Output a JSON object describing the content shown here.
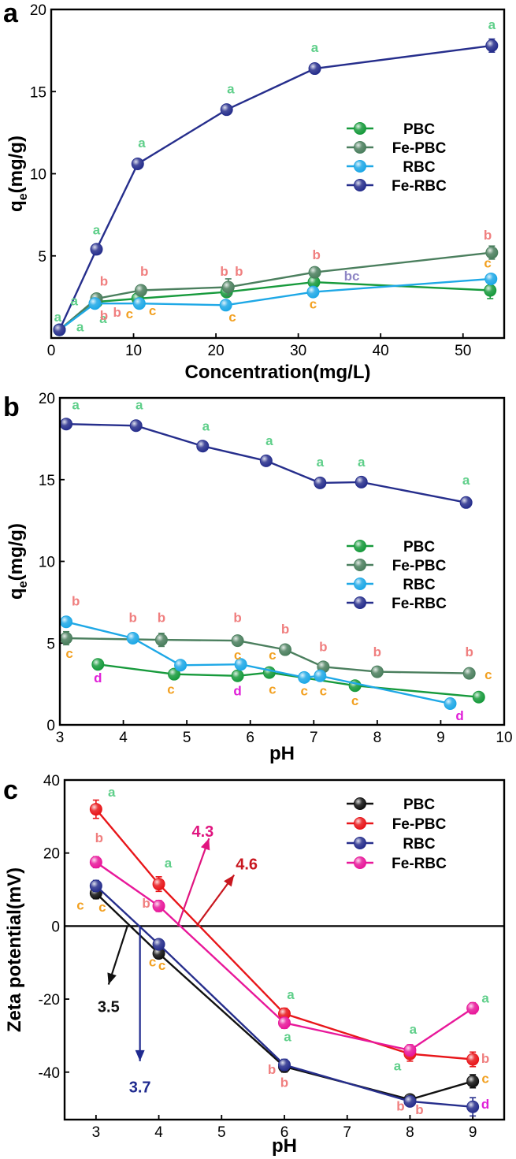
{
  "chart_data": [
    {
      "panel": "a",
      "type": "line",
      "xlabel": "Concentration(mg/L)",
      "ylabel": "q<sub>e</sub>(mg/g)",
      "xlim": [
        0,
        55
      ],
      "ylim": [
        0,
        20
      ],
      "xticks": [
        0,
        10,
        20,
        30,
        40,
        50
      ],
      "yticks": [
        5,
        10,
        15,
        20
      ],
      "legend_position": "center-right",
      "series": [
        {
          "name": "PBC",
          "color": "#179a3c",
          "x": [
            1,
            5.5,
            10.5,
            21.3,
            31.9,
            53.3
          ],
          "y": [
            0.5,
            2.2,
            2.4,
            2.8,
            3.4,
            2.9
          ],
          "err": [
            0.1,
            0.2,
            0.2,
            0.2,
            0.2,
            0.5
          ]
        },
        {
          "name": "Fe-PBC",
          "color": "#4b7f5e",
          "x": [
            1,
            5.5,
            10.9,
            21.5,
            32,
            53.5
          ],
          "y": [
            0.5,
            2.4,
            2.9,
            3.1,
            4.0,
            5.2
          ],
          "err": [
            0.1,
            0.2,
            0.3,
            0.5,
            0.3,
            0.4
          ]
        },
        {
          "name": "RBC",
          "color": "#1ea8e6",
          "x": [
            1,
            5.3,
            10.7,
            21.2,
            31.8,
            53.4
          ],
          "y": [
            0.5,
            2.1,
            2.1,
            2.0,
            2.8,
            3.6
          ],
          "err": [
            0.1,
            0.2,
            0.2,
            0.2,
            0.2,
            0.2
          ]
        },
        {
          "name": "Fe-RBC",
          "color": "#262e8c",
          "x": [
            1,
            5.5,
            10.5,
            21.3,
            32,
            53.5
          ],
          "y": [
            0.5,
            5.4,
            10.6,
            13.9,
            16.4,
            17.8
          ],
          "err": [
            0.1,
            0.2,
            0.2,
            0.2,
            0.3,
            0.4
          ]
        }
      ],
      "annotations": [
        {
          "text": "a",
          "x": 0.8,
          "y": 1.0,
          "color": "#5fcf8a"
        },
        {
          "text": "a",
          "x": 2.8,
          "y": 2.0,
          "color": "#5fcf8a"
        },
        {
          "text": "a",
          "x": 3.5,
          "y": 0.4,
          "color": "#5fcf8a"
        },
        {
          "text": "a",
          "x": 6.3,
          "y": 0.9,
          "color": "#5fcf8a"
        },
        {
          "text": "a",
          "x": 5.5,
          "y": 6.3,
          "color": "#5fcf8a"
        },
        {
          "text": "a",
          "x": 11.0,
          "y": 11.6,
          "color": "#5fcf8a"
        },
        {
          "text": "a",
          "x": 21.8,
          "y": 14.9,
          "color": "#5fcf8a"
        },
        {
          "text": "a",
          "x": 32.0,
          "y": 17.4,
          "color": "#5fcf8a"
        },
        {
          "text": "a",
          "x": 53.5,
          "y": 18.8,
          "color": "#5fcf8a"
        },
        {
          "text": "b",
          "x": 6.4,
          "y": 3.2,
          "color": "#f07f7f"
        },
        {
          "text": "b",
          "x": 6.4,
          "y": 1.1,
          "color": "#f07f7f"
        },
        {
          "text": "b",
          "x": 8.0,
          "y": 1.3,
          "color": "#f07f7f"
        },
        {
          "text": "b",
          "x": 11.3,
          "y": 3.8,
          "color": "#f07f7f"
        },
        {
          "text": "b",
          "x": 21.0,
          "y": 3.8,
          "color": "#f07f7f"
        },
        {
          "text": "b",
          "x": 22.8,
          "y": 3.8,
          "color": "#f07f7f"
        },
        {
          "text": "b",
          "x": 32.2,
          "y": 4.8,
          "color": "#f07f7f"
        },
        {
          "text": "b",
          "x": 53.0,
          "y": 6.0,
          "color": "#f07f7f"
        },
        {
          "text": "bc",
          "x": 36.5,
          "y": 3.5,
          "color": "#8f86c5"
        },
        {
          "text": "c",
          "x": 9.5,
          "y": 1.2,
          "color": "#f2a020"
        },
        {
          "text": "c",
          "x": 12.3,
          "y": 1.4,
          "color": "#f2a020"
        },
        {
          "text": "c",
          "x": 22.0,
          "y": 1.0,
          "color": "#f2a020"
        },
        {
          "text": "c",
          "x": 31.8,
          "y": 1.8,
          "color": "#f2a020"
        },
        {
          "text": "c",
          "x": 53.0,
          "y": 4.3,
          "color": "#f2a020"
        }
      ]
    },
    {
      "panel": "b",
      "type": "line",
      "xlabel": "pH",
      "ylabel": "q<sub>e</sub>(mg/g)",
      "xlim": [
        3,
        10
      ],
      "ylim": [
        0,
        20
      ],
      "xticks": [
        3,
        4,
        5,
        6,
        7,
        8,
        9,
        10
      ],
      "yticks": [
        0,
        5,
        10,
        15,
        20
      ],
      "legend_position": "center-right",
      "series": [
        {
          "name": "PBC",
          "color": "#179a3c",
          "x": [
            3.6,
            4.8,
            5.8,
            6.3,
            7.65,
            9.6
          ],
          "y": [
            3.7,
            3.1,
            3.0,
            3.2,
            2.4,
            1.7
          ],
          "err": [
            0.3,
            0.2,
            0.3,
            0.2,
            0.2,
            0.2
          ]
        },
        {
          "name": "Fe-PBC",
          "color": "#4b7f5e",
          "x": [
            3.1,
            4.6,
            5.8,
            6.55,
            7.15,
            8.0,
            9.45
          ],
          "y": [
            5.3,
            5.2,
            5.15,
            4.6,
            3.55,
            3.25,
            3.15
          ],
          "err": [
            0.4,
            0.4,
            0.3,
            0.3,
            0.2,
            0.2,
            0.2
          ]
        },
        {
          "name": "RBC",
          "color": "#1ea8e6",
          "x": [
            3.1,
            4.15,
            4.9,
            5.85,
            6.85,
            7.1,
            9.15
          ],
          "y": [
            6.3,
            5.3,
            3.65,
            3.7,
            2.9,
            3.0,
            1.3
          ],
          "err": [
            0.3,
            0.2,
            0.2,
            0.2,
            0.2,
            0.2,
            0.2
          ]
        },
        {
          "name": "Fe-RBC",
          "color": "#262e8c",
          "x": [
            3.1,
            4.2,
            5.25,
            6.25,
            7.1,
            7.75,
            9.4
          ],
          "y": [
            18.4,
            18.3,
            17.05,
            16.15,
            14.8,
            14.85,
            13.6
          ],
          "err": [
            0.2,
            0.2,
            0.2,
            0.2,
            0.2,
            0.2,
            0.2
          ]
        }
      ],
      "annotations": [
        {
          "text": "a",
          "x": 3.25,
          "y": 19.3,
          "color": "#5fcf8a"
        },
        {
          "text": "a",
          "x": 4.25,
          "y": 19.3,
          "color": "#5fcf8a"
        },
        {
          "text": "a",
          "x": 5.3,
          "y": 18.0,
          "color": "#5fcf8a"
        },
        {
          "text": "a",
          "x": 6.3,
          "y": 17.1,
          "color": "#5fcf8a"
        },
        {
          "text": "a",
          "x": 7.1,
          "y": 15.8,
          "color": "#5fcf8a"
        },
        {
          "text": "a",
          "x": 7.75,
          "y": 15.8,
          "color": "#5fcf8a"
        },
        {
          "text": "a",
          "x": 9.4,
          "y": 14.7,
          "color": "#5fcf8a"
        },
        {
          "text": "b",
          "x": 3.25,
          "y": 7.3,
          "color": "#f07f7f"
        },
        {
          "text": "b",
          "x": 4.15,
          "y": 6.3,
          "color": "#f07f7f"
        },
        {
          "text": "b",
          "x": 4.6,
          "y": 6.3,
          "color": "#f07f7f"
        },
        {
          "text": "b",
          "x": 5.8,
          "y": 6.3,
          "color": "#f07f7f"
        },
        {
          "text": "b",
          "x": 6.55,
          "y": 5.6,
          "color": "#f07f7f"
        },
        {
          "text": "b",
          "x": 7.15,
          "y": 4.5,
          "color": "#f07f7f"
        },
        {
          "text": "b",
          "x": 8.0,
          "y": 4.2,
          "color": "#f07f7f"
        },
        {
          "text": "b",
          "x": 9.45,
          "y": 4.2,
          "color": "#f07f7f"
        },
        {
          "text": "c",
          "x": 3.15,
          "y": 4.1,
          "color": "#f2a020"
        },
        {
          "text": "c",
          "x": 4.75,
          "y": 1.9,
          "color": "#f2a020"
        },
        {
          "text": "c",
          "x": 5.8,
          "y": 4.0,
          "color": "#f2a020"
        },
        {
          "text": "c",
          "x": 6.35,
          "y": 4.0,
          "color": "#f2a020"
        },
        {
          "text": "c",
          "x": 6.35,
          "y": 1.9,
          "color": "#f2a020"
        },
        {
          "text": "c",
          "x": 6.85,
          "y": 1.8,
          "color": "#f2a020"
        },
        {
          "text": "c",
          "x": 7.15,
          "y": 1.8,
          "color": "#f2a020"
        },
        {
          "text": "c",
          "x": 7.65,
          "y": 1.2,
          "color": "#f2a020"
        },
        {
          "text": "c",
          "x": 9.75,
          "y": 2.8,
          "color": "#f2a020"
        },
        {
          "text": "d",
          "x": 3.6,
          "y": 2.6,
          "color": "#e020d8"
        },
        {
          "text": "d",
          "x": 5.8,
          "y": 1.8,
          "color": "#e020d8"
        },
        {
          "text": "d",
          "x": 9.3,
          "y": 0.3,
          "color": "#e020d8"
        }
      ]
    },
    {
      "panel": "c",
      "type": "line",
      "xlabel": "pH",
      "ylabel": "Zeta potential(mV)",
      "xlim": [
        2.5,
        9.5
      ],
      "ylim": [
        -53,
        40
      ],
      "xticks": [
        3,
        4,
        5,
        6,
        7,
        8,
        9
      ],
      "yticks": [
        -40,
        -20,
        0,
        20,
        40
      ],
      "zero_line": true,
      "legend_position": "top-right",
      "series": [
        {
          "name": "PBC",
          "color": "#111111",
          "x": [
            3,
            4,
            6,
            8,
            9
          ],
          "y": [
            9,
            -7.5,
            -38.5,
            -47.5,
            -42.5
          ],
          "err": [
            1.5,
            1.2,
            1.5,
            1.2,
            1.8
          ]
        },
        {
          "name": "Fe-PBC",
          "color": "#e8161a",
          "x": [
            3,
            4,
            6,
            8,
            9
          ],
          "y": [
            32,
            11.5,
            -24,
            -35,
            -36.5
          ],
          "err": [
            2.5,
            2.0,
            1.5,
            2.0,
            2.0
          ]
        },
        {
          "name": "RBC",
          "color": "#262e8c",
          "x": [
            3,
            4,
            6,
            8,
            9
          ],
          "y": [
            11,
            -5,
            -38,
            -48,
            -49.5
          ],
          "err": [
            1.5,
            1.2,
            1.5,
            1.2,
            2.5
          ]
        },
        {
          "name": "Fe-RBC",
          "color": "#e8189a",
          "x": [
            3,
            4,
            6,
            8,
            9
          ],
          "y": [
            17.5,
            5.5,
            -26.5,
            -34,
            -22.5
          ],
          "err": [
            1.5,
            1.5,
            1.5,
            1.5,
            1.5
          ]
        }
      ],
      "annotations": [
        {
          "text": "a",
          "x": 3.25,
          "y": 35.5,
          "color": "#5fcf8a"
        },
        {
          "text": "a",
          "x": 4.15,
          "y": 16.0,
          "color": "#5fcf8a"
        },
        {
          "text": "a",
          "x": 6.1,
          "y": -20.0,
          "color": "#5fcf8a"
        },
        {
          "text": "a",
          "x": 6.05,
          "y": -31.5,
          "color": "#5fcf8a"
        },
        {
          "text": "a",
          "x": 8.05,
          "y": -29.5,
          "color": "#5fcf8a"
        },
        {
          "text": "a",
          "x": 7.8,
          "y": -39.5,
          "color": "#5fcf8a"
        },
        {
          "text": "a",
          "x": 9.2,
          "y": -21.0,
          "color": "#5fcf8a"
        },
        {
          "text": "b",
          "x": 3.05,
          "y": 23.0,
          "color": "#f07f7f"
        },
        {
          "text": "b",
          "x": 3.8,
          "y": 5.0,
          "color": "#f07f7f"
        },
        {
          "text": "b",
          "x": 5.8,
          "y": -40.5,
          "color": "#f07f7f"
        },
        {
          "text": "b",
          "x": 6.0,
          "y": -44.0,
          "color": "#f07f7f"
        },
        {
          "text": "b",
          "x": 7.85,
          "y": -50.5,
          "color": "#f07f7f"
        },
        {
          "text": "b",
          "x": 8.15,
          "y": -51.5,
          "color": "#f07f7f"
        },
        {
          "text": "b",
          "x": 9.2,
          "y": -37.5,
          "color": "#f07f7f"
        },
        {
          "text": "c",
          "x": 2.75,
          "y": 4.5,
          "color": "#f2a020"
        },
        {
          "text": "c",
          "x": 3.1,
          "y": 4.0,
          "color": "#f2a020"
        },
        {
          "text": "c",
          "x": 3.9,
          "y": -11.0,
          "color": "#f2a020"
        },
        {
          "text": "c",
          "x": 4.05,
          "y": -12.0,
          "color": "#f2a020"
        },
        {
          "text": "c",
          "x": 9.2,
          "y": -43.0,
          "color": "#f2a020"
        },
        {
          "text": "d",
          "x": 9.2,
          "y": -50.0,
          "color": "#e020d8"
        }
      ],
      "callouts": [
        {
          "text": "3.5",
          "color": "#111111",
          "from": [
            3.5,
            0
          ],
          "to": [
            3.2,
            -16
          ],
          "label": [
            3.2,
            -22
          ]
        },
        {
          "text": "3.7",
          "color": "#1f2a8f",
          "from": [
            3.7,
            0
          ],
          "to": [
            3.7,
            -37
          ],
          "label": [
            3.7,
            -44
          ]
        },
        {
          "text": "4.3",
          "color": "#e0147f",
          "from": [
            4.3,
            0
          ],
          "to": [
            4.8,
            24
          ],
          "label": [
            4.7,
            26
          ]
        },
        {
          "text": "4.6",
          "color": "#c8171f",
          "from": [
            4.6,
            0
          ],
          "to": [
            5.2,
            14
          ],
          "label": [
            5.4,
            17
          ]
        }
      ]
    }
  ]
}
